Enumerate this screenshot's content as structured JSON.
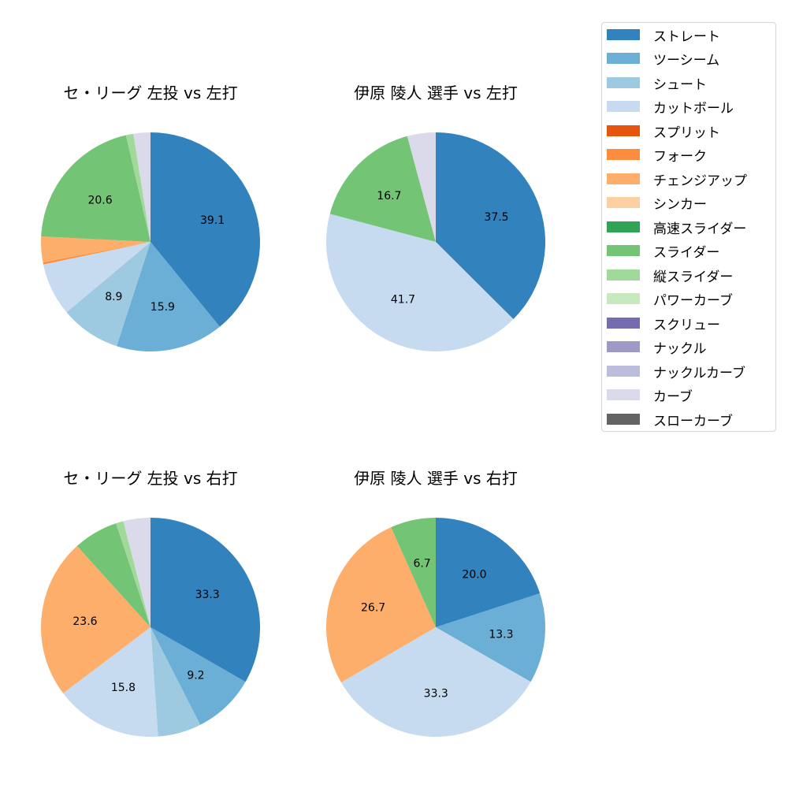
{
  "chart_data": {
    "type": "pie",
    "layout": "2x2 grid of pies with shared legend at top-right",
    "legend": {
      "position": "upper right",
      "entries": [
        {
          "label": "ストレート",
          "color": "#3182bd"
        },
        {
          "label": "ツーシーム",
          "color": "#6baed6"
        },
        {
          "label": "シュート",
          "color": "#9ecae1"
        },
        {
          "label": "カットボール",
          "color": "#c6dbef"
        },
        {
          "label": "スプリット",
          "color": "#e6550d"
        },
        {
          "label": "フォーク",
          "color": "#fd8d3c"
        },
        {
          "label": "チェンジアップ",
          "color": "#fdae6b"
        },
        {
          "label": "シンカー",
          "color": "#fdd0a2"
        },
        {
          "label": "高速スライダー",
          "color": "#31a354"
        },
        {
          "label": "スライダー",
          "color": "#74c476"
        },
        {
          "label": "縦スライダー",
          "color": "#a1d99b"
        },
        {
          "label": "パワーカーブ",
          "color": "#c7e9c0"
        },
        {
          "label": "スクリュー",
          "color": "#756bb1"
        },
        {
          "label": "ナックル",
          "color": "#9e9ac8"
        },
        {
          "label": "ナックルカーブ",
          "color": "#bcbddc"
        },
        {
          "label": "カーブ",
          "color": "#dadaeb"
        },
        {
          "label": "スローカーブ",
          "color": "#636363"
        }
      ]
    },
    "charts": [
      {
        "title": "セ・リーグ 左投 vs 左打",
        "start_angle": 90,
        "direction": "clockwise",
        "slices": [
          {
            "label": "ストレート",
            "value": 39.1,
            "color": "#3182bd",
            "show_label": true
          },
          {
            "label": "ツーシーム",
            "value": 15.9,
            "color": "#6baed6",
            "show_label": true
          },
          {
            "label": "シュート",
            "value": 8.9,
            "color": "#9ecae1",
            "show_label": true
          },
          {
            "label": "カットボール",
            "value": 7.8,
            "color": "#c6dbef",
            "show_label": false
          },
          {
            "label": "フォーク",
            "value": 0.3,
            "color": "#fd8d3c",
            "show_label": false
          },
          {
            "label": "チェンジアップ",
            "value": 3.8,
            "color": "#fdae6b",
            "show_label": false
          },
          {
            "label": "スライダー",
            "value": 20.6,
            "color": "#74c476",
            "show_label": true
          },
          {
            "label": "縦スライダー",
            "value": 1.1,
            "color": "#a1d99b",
            "show_label": false
          },
          {
            "label": "カーブ",
            "value": 2.5,
            "color": "#dadaeb",
            "show_label": false
          }
        ]
      },
      {
        "title": "伊原 陵人 選手 vs 左打",
        "start_angle": 90,
        "direction": "clockwise",
        "slices": [
          {
            "label": "ストレート",
            "value": 37.5,
            "color": "#3182bd",
            "show_label": true
          },
          {
            "label": "カットボール",
            "value": 41.7,
            "color": "#c6dbef",
            "show_label": true
          },
          {
            "label": "スライダー",
            "value": 16.7,
            "color": "#74c476",
            "show_label": true
          },
          {
            "label": "カーブ",
            "value": 4.2,
            "color": "#dadaeb",
            "show_label": false
          }
        ]
      },
      {
        "title": "セ・リーグ 左投 vs 右打",
        "start_angle": 90,
        "direction": "clockwise",
        "slices": [
          {
            "label": "ストレート",
            "value": 33.3,
            "color": "#3182bd",
            "show_label": true
          },
          {
            "label": "ツーシーム",
            "value": 9.2,
            "color": "#6baed6",
            "show_label": true
          },
          {
            "label": "シュート",
            "value": 6.4,
            "color": "#9ecae1",
            "show_label": false
          },
          {
            "label": "カットボール",
            "value": 15.8,
            "color": "#c6dbef",
            "show_label": true
          },
          {
            "label": "チェンジアップ",
            "value": 23.6,
            "color": "#fdae6b",
            "show_label": true
          },
          {
            "label": "スライダー",
            "value": 6.6,
            "color": "#74c476",
            "show_label": false
          },
          {
            "label": "縦スライダー",
            "value": 1.1,
            "color": "#a1d99b",
            "show_label": false
          },
          {
            "label": "カーブ",
            "value": 4.0,
            "color": "#dadaeb",
            "show_label": false
          }
        ]
      },
      {
        "title": "伊原 陵人 選手 vs 右打",
        "start_angle": 90,
        "direction": "clockwise",
        "slices": [
          {
            "label": "ストレート",
            "value": 20.0,
            "color": "#3182bd",
            "show_label": true
          },
          {
            "label": "ツーシーム",
            "value": 13.3,
            "color": "#6baed6",
            "show_label": true
          },
          {
            "label": "カットボール",
            "value": 33.3,
            "color": "#c6dbef",
            "show_label": true
          },
          {
            "label": "チェンジアップ",
            "value": 26.7,
            "color": "#fdae6b",
            "show_label": true
          },
          {
            "label": "スライダー",
            "value": 6.7,
            "color": "#74c476",
            "show_label": true
          }
        ]
      }
    ]
  }
}
